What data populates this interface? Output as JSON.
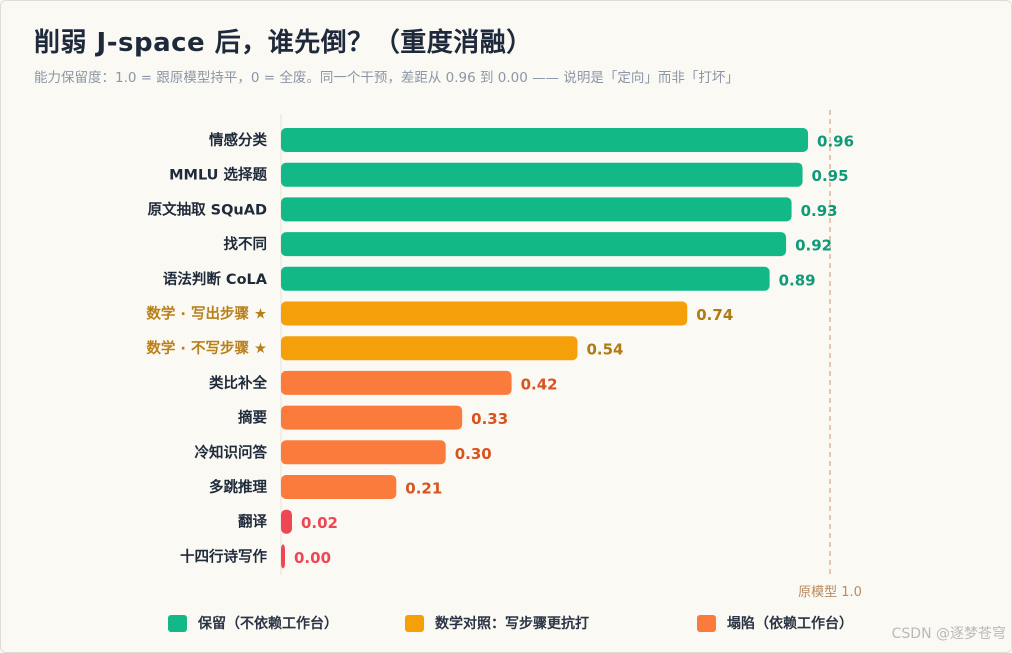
{
  "header": {
    "title": "削弱 J-space 后，谁先倒？（重度消融）",
    "subtitle": "能力保留度：1.0 = 跟原模型持平，0 = 全废。同一个干预，差距从 0.96 到 0.00 —— 说明是「定向」而非「打坏」"
  },
  "chart_data": {
    "type": "bar",
    "orientation": "horizontal",
    "categories": [
      "情感分类",
      "MMLU 选择题",
      "原文抽取 SQuAD",
      "找不同",
      "语法判断 CoLA",
      "数学 · 写出步骤 ★",
      "数学 · 不写步骤 ★",
      "类比补全",
      "摘要",
      "冷知识问答",
      "多跳推理",
      "翻译",
      "十四行诗写作"
    ],
    "values": [
      0.96,
      0.95,
      0.93,
      0.92,
      0.89,
      0.74,
      0.54,
      0.42,
      0.33,
      0.3,
      0.21,
      0.02,
      0.0
    ],
    "groups": [
      "keep",
      "keep",
      "keep",
      "keep",
      "keep",
      "math",
      "math",
      "collapse",
      "collapse",
      "collapse",
      "collapse",
      "collapse",
      "collapse"
    ],
    "value_labels": [
      "0.96",
      "0.95",
      "0.93",
      "0.92",
      "0.89",
      "0.74",
      "0.54",
      "0.42",
      "0.33",
      "0.30",
      "0.21",
      "0.02",
      "0.00"
    ],
    "xlim": [
      0,
      1.0
    ],
    "reference_line": {
      "value": 1.0,
      "label": "原模型 1.0",
      "color": "#d9a98c"
    },
    "legend_position": "bottom",
    "legend": [
      {
        "key": "keep",
        "label": "保留（不依赖工作台）",
        "color": "#12b886",
        "text_color": "#0f9a78"
      },
      {
        "key": "math",
        "label": "数学对照：写步骤更抗打",
        "color": "#f59f0b",
        "text_color": "#b07a14"
      },
      {
        "key": "collapse",
        "label": "塌陷（依赖工作台）",
        "color": "#fb7b3c",
        "text_color": "#d9531f"
      }
    ],
    "last_collapse_color": "#ef4655",
    "grid": false
  },
  "watermark": "CSDN @逐梦苍穹"
}
